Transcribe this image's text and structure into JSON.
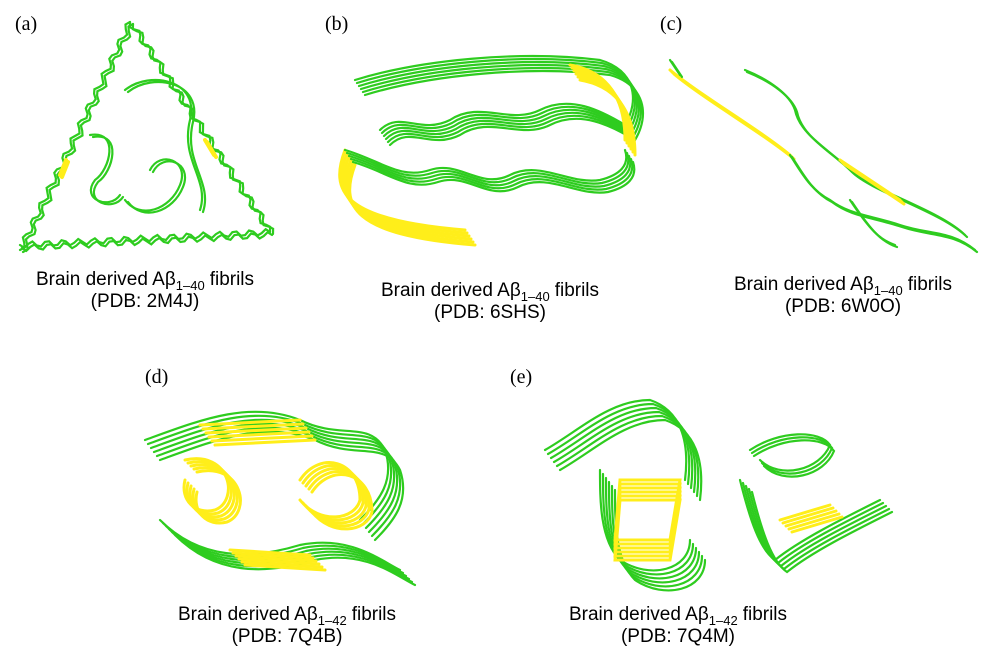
{
  "panels": [
    {
      "label": "(a)",
      "caption": {
        "text": "Brain derived Aβ",
        "subscript": "1–40",
        "suffix": "fibrils"
      },
      "pdb": "(PDB: 2M4J)"
    },
    {
      "label": "(b)",
      "caption": {
        "text": "Brain derived Aβ",
        "subscript": "1–40",
        "suffix": "fibrils"
      },
      "pdb": "(PDB: 6SHS)"
    },
    {
      "label": "(c)",
      "caption": {
        "text": "Brain derived Aβ",
        "subscript": "1–40",
        "suffix": "fibrils"
      },
      "pdb": "(PDB: 6W0O)"
    },
    {
      "label": "(d)",
      "caption": {
        "text": "Brain derived Aβ",
        "subscript": "1–42",
        "suffix": "fibrils"
      },
      "pdb": "(PDB: 7Q4B)"
    },
    {
      "label": "(e)",
      "caption": {
        "text": "Brain derived Aβ",
        "subscript": "1–42",
        "suffix": "fibrils"
      },
      "pdb": "(PDB: 7Q4M)"
    }
  ]
}
